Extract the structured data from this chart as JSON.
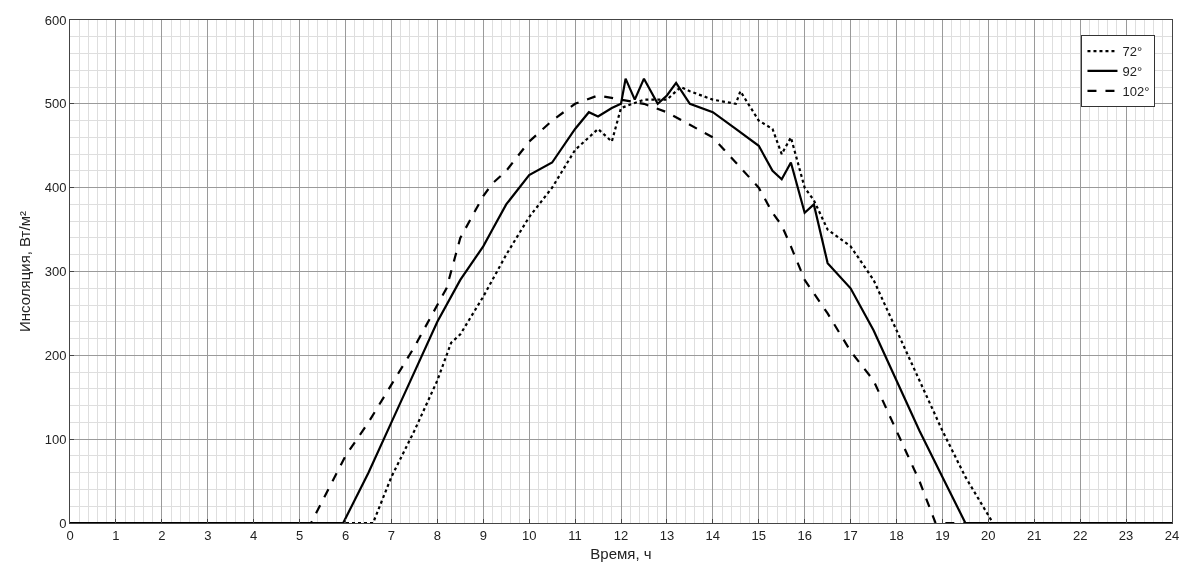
{
  "chart_data": {
    "type": "line",
    "xlabel": "Время, ч",
    "ylabel": "Инсоляция, Вт/м²",
    "xlim": [
      0,
      24
    ],
    "ylim": [
      0,
      600
    ],
    "xticks": [
      0,
      1,
      2,
      3,
      4,
      5,
      6,
      7,
      8,
      9,
      10,
      11,
      12,
      13,
      14,
      15,
      16,
      17,
      18,
      19,
      20,
      21,
      22,
      23,
      24
    ],
    "yticks": [
      0,
      100,
      200,
      300,
      400,
      500,
      600
    ],
    "grid": true,
    "legend": "top right",
    "marker": "none",
    "series": [
      {
        "name": "72°",
        "color": "#000000",
        "line_style": "dotted",
        "x": [
          0,
          6,
          6.6,
          7,
          7.5,
          8,
          8.3,
          8.5,
          9,
          9.5,
          10,
          10.5,
          11,
          11.3,
          11.5,
          11.8,
          12,
          12.5,
          13,
          13.3,
          13.5,
          14,
          14.5,
          14.6,
          15,
          15.3,
          15.5,
          15.7,
          16,
          16.2,
          16.5,
          17,
          17.5,
          18,
          18.5,
          19,
          19.5,
          20.1,
          24
        ],
        "values": [
          0,
          0,
          0,
          55,
          110,
          170,
          215,
          225,
          270,
          320,
          365,
          400,
          445,
          460,
          470,
          455,
          495,
          505,
          505,
          520,
          515,
          505,
          500,
          515,
          480,
          470,
          440,
          460,
          400,
          385,
          350,
          330,
          290,
          230,
          170,
          110,
          55,
          0,
          0
        ]
      },
      {
        "name": "92°",
        "color": "#000000",
        "line_style": "solid",
        "x": [
          0,
          5.95,
          6.5,
          7,
          7.5,
          8,
          8.5,
          9,
          9.2,
          9.5,
          10,
          10.5,
          11,
          11.3,
          11.5,
          11.8,
          12,
          12.1,
          12.3,
          12.5,
          12.8,
          13,
          13.2,
          13.5,
          14,
          14.5,
          15,
          15.3,
          15.5,
          15.7,
          16,
          16.2,
          16.5,
          17,
          17.5,
          18,
          18.5,
          19,
          19.5,
          24
        ],
        "values": [
          0,
          0,
          60,
          120,
          180,
          240,
          290,
          330,
          350,
          380,
          415,
          430,
          470,
          490,
          485,
          495,
          500,
          530,
          505,
          530,
          500,
          510,
          525,
          500,
          490,
          470,
          450,
          420,
          410,
          430,
          370,
          380,
          310,
          280,
          230,
          170,
          110,
          55,
          0,
          0
        ]
      },
      {
        "name": "102°",
        "color": "#000000",
        "line_style": "dashed",
        "x": [
          0,
          5.25,
          6,
          6.5,
          7,
          7.5,
          8,
          8.2,
          8.5,
          9,
          9.2,
          9.5,
          10,
          10.5,
          11,
          11.5,
          12,
          12.5,
          13,
          13.5,
          14,
          14.5,
          15,
          15.3,
          15.5,
          15.7,
          16,
          16.5,
          17,
          17.5,
          18,
          18.5,
          18.85,
          24
        ],
        "values": [
          0,
          0,
          80,
          120,
          165,
          210,
          260,
          280,
          340,
          390,
          405,
          420,
          455,
          480,
          500,
          510,
          505,
          500,
          490,
          475,
          460,
          430,
          400,
          370,
          355,
          330,
          290,
          250,
          205,
          170,
          110,
          50,
          0,
          0
        ]
      }
    ]
  }
}
